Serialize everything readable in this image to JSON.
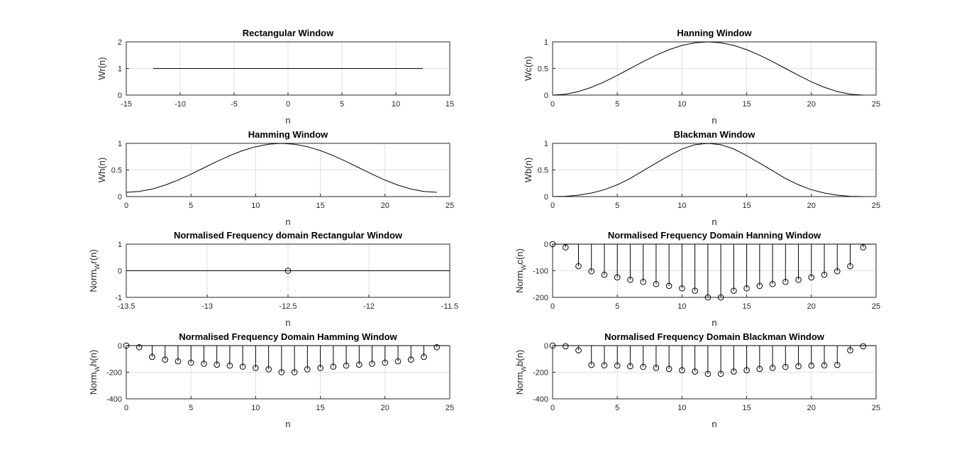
{
  "figure": {
    "background": "#ffffff",
    "line_color": "#000000"
  },
  "chart_data": [
    {
      "id": "rect",
      "type": "line",
      "title": "Rectangular Window",
      "xlabel": "n",
      "ylabel_main": "Wr(n)",
      "ylabel_sub": "",
      "ylabel_tail": "",
      "xlim": [
        -15,
        15
      ],
      "ylim": [
        0,
        2
      ],
      "grid": true,
      "xticks": [
        -15,
        -10,
        -5,
        0,
        5,
        10,
        15
      ],
      "xtick_labels": [
        "-15",
        "-10",
        "-5",
        "0",
        "5",
        "10",
        "15"
      ],
      "yticks": [
        0,
        1,
        2
      ],
      "ytick_labels": [
        "0",
        "1",
        "2"
      ],
      "x": [
        -12.5,
        12.5
      ],
      "y": [
        1,
        1
      ]
    },
    {
      "id": "hann",
      "type": "line",
      "title": "Hanning Window",
      "xlabel": "n",
      "ylabel_main": "Wc(n)",
      "ylabel_sub": "",
      "ylabel_tail": "",
      "xlim": [
        0,
        25
      ],
      "ylim": [
        0,
        1
      ],
      "grid": true,
      "xticks": [
        0,
        5,
        10,
        15,
        20,
        25
      ],
      "xtick_labels": [
        "0",
        "5",
        "10",
        "15",
        "20",
        "25"
      ],
      "yticks": [
        0,
        0.5,
        1
      ],
      "ytick_labels": [
        "0",
        "0.5",
        "1"
      ],
      "x": [
        0,
        1,
        2,
        3,
        4,
        5,
        6,
        7,
        8,
        9,
        10,
        11,
        12,
        13,
        14,
        15,
        16,
        17,
        18,
        19,
        20,
        21,
        22,
        23,
        24
      ],
      "y": [
        0,
        0.017,
        0.067,
        0.146,
        0.25,
        0.371,
        0.5,
        0.629,
        0.75,
        0.854,
        0.933,
        0.983,
        1,
        0.983,
        0.933,
        0.854,
        0.75,
        0.629,
        0.5,
        0.371,
        0.25,
        0.146,
        0.067,
        0.017,
        0
      ]
    },
    {
      "id": "hamm",
      "type": "line",
      "title": "Hamming Window",
      "xlabel": "n",
      "ylabel_main": "Wh(n)",
      "ylabel_sub": "",
      "ylabel_tail": "",
      "xlim": [
        0,
        25
      ],
      "ylim": [
        0,
        1
      ],
      "grid": true,
      "xticks": [
        0,
        5,
        10,
        15,
        20,
        25
      ],
      "xtick_labels": [
        "0",
        "5",
        "10",
        "15",
        "20",
        "25"
      ],
      "yticks": [
        0,
        0.5,
        1
      ],
      "ytick_labels": [
        "0",
        "0.5",
        "1"
      ],
      "x": [
        0,
        1,
        2,
        3,
        4,
        5,
        6,
        7,
        8,
        9,
        10,
        11,
        12,
        13,
        14,
        15,
        16,
        17,
        18,
        19,
        20,
        21,
        22,
        23,
        24
      ],
      "y": [
        0.08,
        0.096,
        0.142,
        0.214,
        0.31,
        0.421,
        0.54,
        0.659,
        0.77,
        0.866,
        0.938,
        0.984,
        1,
        0.984,
        0.938,
        0.866,
        0.77,
        0.659,
        0.54,
        0.421,
        0.31,
        0.214,
        0.142,
        0.096,
        0.08
      ]
    },
    {
      "id": "black",
      "type": "line",
      "title": "Blackman Window",
      "xlabel": "n",
      "ylabel_main": "Wb(n)",
      "ylabel_sub": "",
      "ylabel_tail": "",
      "xlim": [
        0,
        25
      ],
      "ylim": [
        0,
        1
      ],
      "grid": true,
      "xticks": [
        0,
        5,
        10,
        15,
        20,
        25
      ],
      "xtick_labels": [
        "0",
        "5",
        "10",
        "15",
        "20",
        "25"
      ],
      "yticks": [
        0,
        0.5,
        1
      ],
      "ytick_labels": [
        "0",
        "0.5",
        "1"
      ],
      "x": [
        0,
        1,
        2,
        3,
        4,
        5,
        6,
        7,
        8,
        9,
        10,
        11,
        12,
        13,
        14,
        15,
        16,
        17,
        18,
        19,
        20,
        21,
        22,
        23,
        24
      ],
      "y": [
        0,
        0.006,
        0.027,
        0.067,
        0.13,
        0.221,
        0.34,
        0.486,
        0.63,
        0.77,
        0.895,
        0.974,
        1,
        0.974,
        0.895,
        0.77,
        0.63,
        0.486,
        0.34,
        0.221,
        0.13,
        0.067,
        0.027,
        0.006,
        0
      ]
    },
    {
      "id": "freq_rect",
      "type": "stem",
      "title": "Normalised Frequency domain Rectangular Window",
      "xlabel": "n",
      "ylabel_main": "Norm",
      "ylabel_sub": "W",
      "ylabel_tail": "r(n)",
      "xlim": [
        -13.5,
        -11.5
      ],
      "ylim": [
        -1,
        1
      ],
      "grid": true,
      "xticks": [
        -13.5,
        -13,
        -12.5,
        -12,
        -11.5
      ],
      "xtick_labels": [
        "-13.5",
        "-13",
        "-12.5",
        "-12",
        "-11.5"
      ],
      "yticks": [
        -1,
        0,
        1
      ],
      "ytick_labels": [
        "-1",
        "0",
        "1"
      ],
      "baseline": 0,
      "x": [
        -12.5
      ],
      "y": [
        0
      ]
    },
    {
      "id": "freq_hann",
      "type": "stem",
      "title": "Normalised Frequency Domain Hanning Window",
      "xlabel": "n",
      "ylabel_main": "Norm",
      "ylabel_sub": "W",
      "ylabel_tail": "c(n)",
      "xlim": [
        0,
        25
      ],
      "ylim": [
        -200,
        0
      ],
      "grid": true,
      "xticks": [
        0,
        5,
        10,
        15,
        20,
        25
      ],
      "xtick_labels": [
        "0",
        "5",
        "10",
        "15",
        "20",
        "25"
      ],
      "yticks": [
        -200,
        -100,
        0
      ],
      "ytick_labels": [
        "-200",
        "-100",
        "0"
      ],
      "baseline": 0,
      "x": [
        0,
        1,
        2,
        3,
        4,
        5,
        6,
        7,
        8,
        9,
        10,
        11,
        12,
        13,
        14,
        15,
        16,
        17,
        18,
        19,
        20,
        21,
        22,
        23,
        24
      ],
      "y": [
        0,
        -12,
        -83,
        -102,
        -115,
        -125,
        -134,
        -142,
        -150,
        -157,
        -166,
        -175,
        -200,
        -200,
        -175,
        -166,
        -157,
        -150,
        -142,
        -134,
        -125,
        -115,
        -102,
        -83,
        -12
      ]
    },
    {
      "id": "freq_hamm",
      "type": "stem",
      "title": "Normalised Frequency Domain Hamming Window",
      "xlabel": "n",
      "ylabel_main": "Norm",
      "ylabel_sub": "W",
      "ylabel_tail": "h(n)",
      "xlim": [
        0,
        25
      ],
      "ylim": [
        -400,
        0
      ],
      "grid": true,
      "xticks": [
        0,
        5,
        10,
        15,
        20,
        25
      ],
      "xtick_labels": [
        "0",
        "5",
        "10",
        "15",
        "20",
        "25"
      ],
      "yticks": [
        -400,
        -200,
        0
      ],
      "ytick_labels": [
        "-400",
        "-200",
        "0"
      ],
      "baseline": 0,
      "x": [
        0,
        1,
        2,
        3,
        4,
        5,
        6,
        7,
        8,
        9,
        10,
        11,
        12,
        13,
        14,
        15,
        16,
        17,
        18,
        19,
        20,
        21,
        22,
        23,
        24
      ],
      "y": [
        0,
        -12,
        -85,
        -105,
        -118,
        -128,
        -136,
        -143,
        -150,
        -158,
        -168,
        -178,
        -200,
        -200,
        -178,
        -168,
        -158,
        -150,
        -143,
        -136,
        -128,
        -118,
        -105,
        -85,
        -12
      ]
    },
    {
      "id": "freq_black",
      "type": "stem",
      "title": "Normalised Frequency Domain Blackman Window",
      "xlabel": "n",
      "ylabel_main": "Norm",
      "ylabel_sub": "W",
      "ylabel_tail": "b(n)",
      "xlim": [
        0,
        25
      ],
      "ylim": [
        -400,
        0
      ],
      "grid": true,
      "xticks": [
        0,
        5,
        10,
        15,
        20,
        25
      ],
      "xtick_labels": [
        "0",
        "5",
        "10",
        "15",
        "20",
        "25"
      ],
      "yticks": [
        -400,
        -200,
        0
      ],
      "ytick_labels": [
        "-400",
        "-200",
        "0"
      ],
      "baseline": 0,
      "x": [
        0,
        1,
        2,
        3,
        4,
        5,
        6,
        7,
        8,
        9,
        10,
        11,
        12,
        13,
        14,
        15,
        16,
        17,
        18,
        19,
        20,
        21,
        22,
        23,
        24
      ],
      "y": [
        0,
        -5,
        -35,
        -145,
        -148,
        -150,
        -155,
        -160,
        -167,
        -175,
        -185,
        -195,
        -212,
        -212,
        -195,
        -185,
        -175,
        -167,
        -160,
        -155,
        -150,
        -148,
        -145,
        -35,
        -5
      ]
    }
  ]
}
